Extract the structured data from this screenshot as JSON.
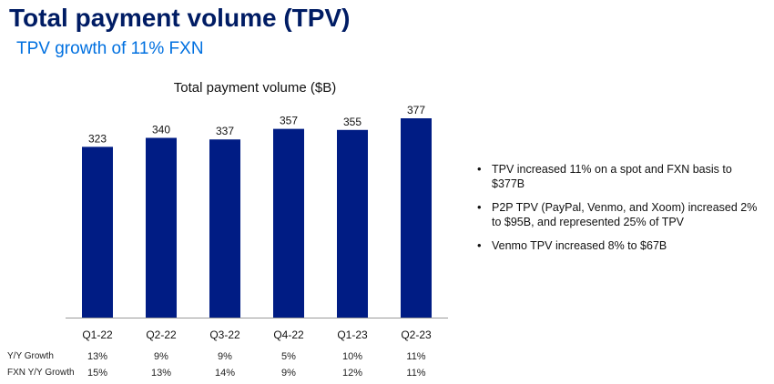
{
  "header": {
    "title": "Total payment volume (TPV)",
    "subtitle": "TPV growth of 11% FXN"
  },
  "colors": {
    "title": "#001c64",
    "subtitle": "#0070e0",
    "bar": "#001c84"
  },
  "chart_data": {
    "type": "bar",
    "title": "Total payment volume ($B)",
    "categories": [
      "Q1-22",
      "Q2-22",
      "Q3-22",
      "Q4-22",
      "Q1-23",
      "Q2-23"
    ],
    "values": [
      323,
      340,
      337,
      357,
      355,
      377
    ],
    "xlabel": "",
    "ylabel": "",
    "grid": false,
    "legend": "none"
  },
  "growth_table": [
    {
      "label": "Y/Y Growth",
      "values": [
        "13%",
        "9%",
        "9%",
        "5%",
        "10%",
        "11%"
      ]
    },
    {
      "label": "FXN Y/Y Growth",
      "values": [
        "15%",
        "13%",
        "14%",
        "9%",
        "12%",
        "11%"
      ]
    }
  ],
  "bullets": [
    "TPV increased 11% on a spot and FXN basis to $377B",
    "P2P TPV (PayPal, Venmo, and Xoom) increased 2% to $95B, and represented 25% of TPV",
    "Venmo TPV increased 8% to $67B"
  ]
}
